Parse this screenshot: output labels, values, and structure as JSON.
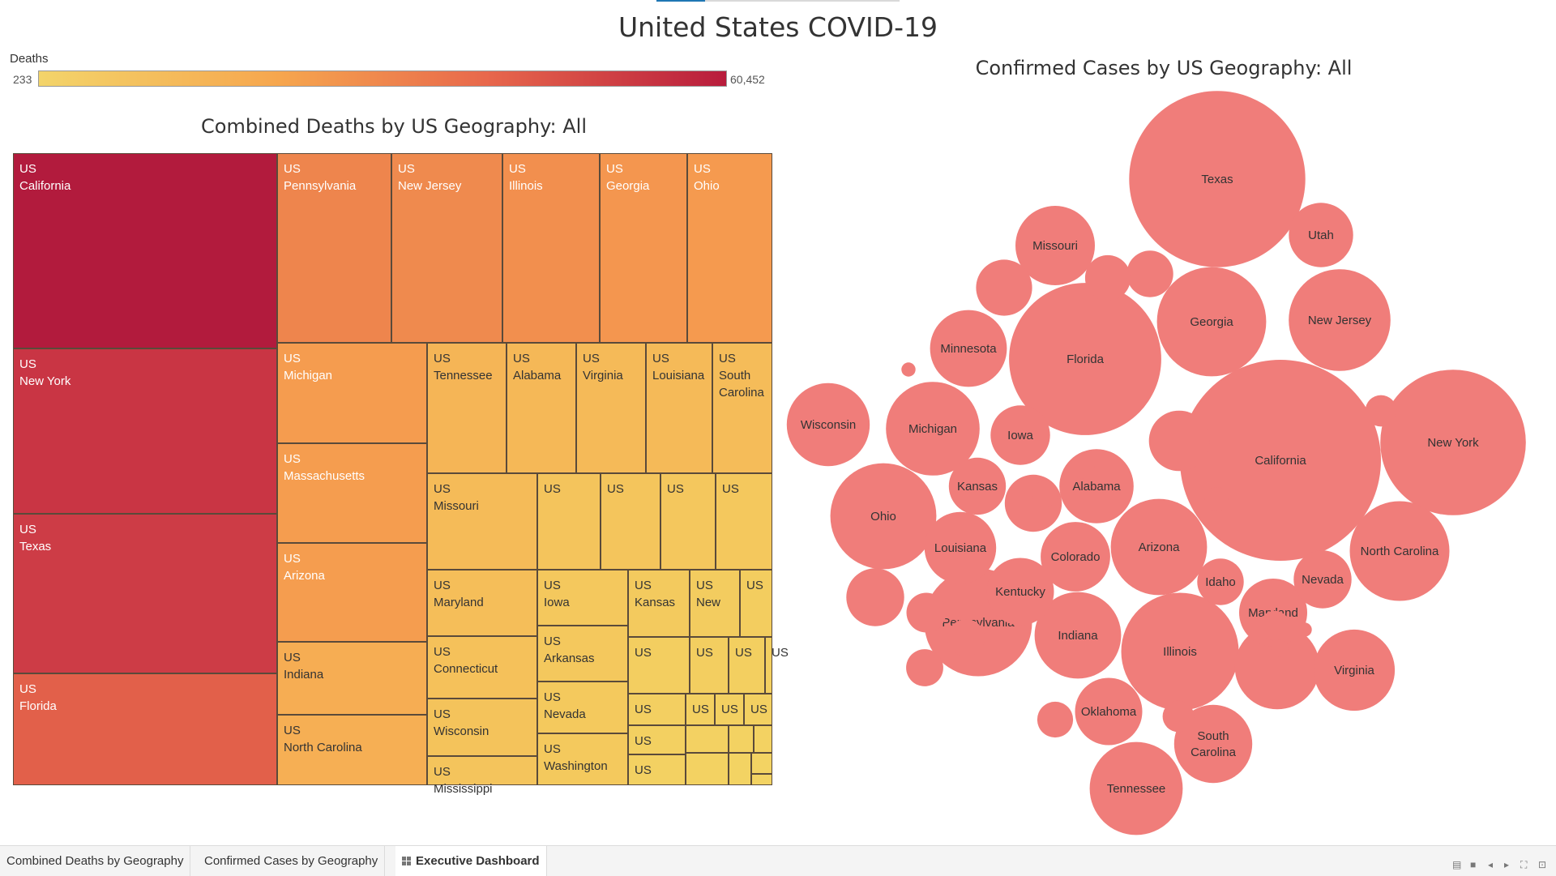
{
  "dashboard_title": "United States COVID-19",
  "legend": {
    "title": "Deaths",
    "min_label": "233",
    "max_label": "60,452",
    "colors": [
      "#f3d46a",
      "#f6a64e",
      "#e8684c",
      "#b81c3c"
    ]
  },
  "chart_data": [
    {
      "type": "treemap",
      "title": "Combined Deaths by US Geography: All",
      "measure": "Deaths",
      "color_range": [
        233,
        60452
      ],
      "tiles": [
        {
          "country": "US",
          "state": "California",
          "label": "US\nCalifornia",
          "value": 60452,
          "color": "#b21b3d"
        },
        {
          "country": "US",
          "state": "New York",
          "label": "US\nNew York",
          "value": 50000,
          "color": "#c93544"
        },
        {
          "country": "US",
          "state": "Texas",
          "label": "US\nTexas",
          "value": 49000,
          "color": "#cd3c46"
        },
        {
          "country": "US",
          "state": "Florida",
          "label": "US\nFlorida",
          "value": 34000,
          "color": "#e2604a"
        },
        {
          "country": "US",
          "state": "Pennsylvania",
          "label": "US\nPennsylvania",
          "value": 26000,
          "color": "#ee854d"
        },
        {
          "country": "US",
          "state": "New Jersey",
          "label": "US\nNew Jersey",
          "value": 25000,
          "color": "#ef8a4e"
        },
        {
          "country": "US",
          "state": "Illinois",
          "label": "US\nIllinois",
          "value": 22500,
          "color": "#f28f4e"
        },
        {
          "country": "US",
          "state": "Georgia",
          "label": "US\nGeorgia",
          "value": 20000,
          "color": "#f4964f"
        },
        {
          "country": "US",
          "state": "Ohio",
          "label": "US\nOhio",
          "value": 19000,
          "color": "#f59a4f"
        },
        {
          "country": "US",
          "state": "Michigan",
          "label": "US\nMichigan",
          "value": 17500,
          "color": "#f59c4f"
        },
        {
          "country": "US",
          "state": "Massachusetts",
          "label": "US\nMassachusetts",
          "value": 17500,
          "color": "#f59d4f"
        },
        {
          "country": "US",
          "state": "Arizona",
          "label": "US\nArizona",
          "value": 17200,
          "color": "#f59d4f"
        },
        {
          "country": "US",
          "state": "Indiana",
          "label": "US\nIndiana",
          "value": 12500,
          "color": "#f6ad53"
        },
        {
          "country": "US",
          "state": "North Carolina",
          "label": "US\nNorth Carolina",
          "value": 12000,
          "color": "#f6af54"
        },
        {
          "country": "US",
          "state": "Tennessee",
          "label": "US\nTennessee",
          "value": 11000,
          "color": "#f5b556"
        },
        {
          "country": "US",
          "state": "Alabama",
          "label": "US\nAlabama",
          "value": 10000,
          "color": "#f5b857"
        },
        {
          "country": "US",
          "state": "Virginia",
          "label": "US\nVirginia",
          "value": 9500,
          "color": "#f5ba58"
        },
        {
          "country": "US",
          "state": "Louisiana",
          "label": "US\nLouisiana",
          "value": 9400,
          "color": "#f5ba58"
        },
        {
          "country": "US",
          "state": "South Carolina",
          "label": "US\nSouth\nCarolina",
          "value": 8900,
          "color": "#f5bc59"
        },
        {
          "country": "US",
          "state": "Missouri",
          "label": "US\nMissouri",
          "value": 9200,
          "color": "#f5bb58"
        },
        {
          "country": "US",
          "state": "",
          "label": "US",
          "value": 7000,
          "color": "#f4c45c"
        },
        {
          "country": "US",
          "state": "",
          "label": "US",
          "value": 6500,
          "color": "#f4c55c"
        },
        {
          "country": "US",
          "state": "",
          "label": "US",
          "value": 6000,
          "color": "#f4c75d"
        },
        {
          "country": "US",
          "state": "",
          "label": "US",
          "value": 5500,
          "color": "#f4c85d"
        },
        {
          "country": "US",
          "state": "Maryland",
          "label": "US\nMaryland",
          "value": 8500,
          "color": "#f5be59"
        },
        {
          "country": "US",
          "state": "Connecticut",
          "label": "US\nConnecticut",
          "value": 7500,
          "color": "#f5c15a"
        },
        {
          "country": "US",
          "state": "Wisconsin",
          "label": "US\nWisconsin",
          "value": 7000,
          "color": "#f4c35b"
        },
        {
          "country": "US",
          "state": "Mississippi",
          "label": "US\nMississippi",
          "value": 6500,
          "color": "#f4c45c"
        },
        {
          "country": "US",
          "state": "Iowa",
          "label": "US\nIowa",
          "value": 5600,
          "color": "#f4c85d"
        },
        {
          "country": "US",
          "state": "Kansas",
          "label": "US\nKansas",
          "value": 4700,
          "color": "#f3ca5e"
        },
        {
          "country": "US",
          "state": "New",
          "label": "US\nNew",
          "value": 3500,
          "color": "#f3cc5f"
        },
        {
          "country": "US",
          "state": "",
          "label": "US",
          "value": 2400,
          "color": "#f3cd5f"
        },
        {
          "country": "US",
          "state": "Arkansas",
          "label": "US\nArkansas",
          "value": 5600,
          "color": "#f4c85d"
        },
        {
          "country": "US",
          "state": "Nevada",
          "label": "US\nNevada",
          "value": 5400,
          "color": "#f4c95d"
        },
        {
          "country": "US",
          "state": "Washington",
          "label": "US\nWashington",
          "value": 5300,
          "color": "#f4c95d"
        },
        {
          "country": "US",
          "state": "",
          "label": "US",
          "value": 2900,
          "color": "#f3ce60"
        },
        {
          "country": "US",
          "state": "",
          "label": "US",
          "value": 2700,
          "color": "#f3ce60"
        },
        {
          "country": "US",
          "state": "",
          "label": "US",
          "value": 2600,
          "color": "#f3cf60"
        },
        {
          "country": "US",
          "state": "",
          "label": "US",
          "value": 2400,
          "color": "#f3cf60"
        },
        {
          "country": "US",
          "state": "",
          "label": "US",
          "value": 2500,
          "color": "#f3cf61"
        },
        {
          "country": "US",
          "state": "",
          "label": "US",
          "value": 1600,
          "color": "#f3d061"
        },
        {
          "country": "US",
          "state": "",
          "label": "US",
          "value": 1600,
          "color": "#f3d061"
        },
        {
          "country": "US",
          "state": "",
          "label": "US",
          "value": 1600,
          "color": "#f3d061"
        },
        {
          "country": "US",
          "state": "",
          "label": "US",
          "value": 2300,
          "color": "#f3d061"
        },
        {
          "country": "US",
          "state": "",
          "label": "US",
          "value": 2100,
          "color": "#f3d162"
        },
        {
          "country": "US",
          "state": "",
          "label": "",
          "value": 1300,
          "color": "#f3d162"
        },
        {
          "country": "US",
          "state": "",
          "label": "",
          "value": 900,
          "color": "#f3d262"
        },
        {
          "country": "US",
          "state": "",
          "label": "",
          "value": 800,
          "color": "#f3d262"
        },
        {
          "country": "US",
          "state": "",
          "label": "",
          "value": 700,
          "color": "#f3d262"
        },
        {
          "country": "US",
          "state": "",
          "label": "",
          "value": 500,
          "color": "#f3d363"
        },
        {
          "country": "US",
          "state": "",
          "label": "",
          "value": 300,
          "color": "#f3d363"
        },
        {
          "country": "US",
          "state": "",
          "label": "",
          "value": 233,
          "color": "#f3d363"
        }
      ]
    },
    {
      "type": "bubble",
      "title": "Confirmed Cases by US Geography: All",
      "measure": "Confirmed Cases",
      "color": "#f07d7a",
      "bubbles": [
        {
          "label": "California",
          "value": 41000
        },
        {
          "label": "Texas",
          "value": 31500
        },
        {
          "label": "Florida",
          "value": 23500
        },
        {
          "label": "New York",
          "value": 21500
        },
        {
          "label": "Illinois",
          "value": 14000
        },
        {
          "label": "Georgia",
          "value": 12100
        },
        {
          "label": "Pennsylvania",
          "value": 11800
        },
        {
          "label": "Ohio",
          "value": 11400
        },
        {
          "label": "Arizona",
          "value": 9400
        },
        {
          "label": "North Carolina",
          "value": 10100
        },
        {
          "label": "Michigan",
          "value": 8900
        },
        {
          "label": "New Jersey",
          "value": 10500
        },
        {
          "label": "Tennessee",
          "value": 8800
        },
        {
          "label": "Indiana",
          "value": 7600
        },
        {
          "label": "",
          "value": 7300
        },
        {
          "label": "Missouri",
          "value": 6400
        },
        {
          "label": "Wisconsin",
          "value": 7000
        },
        {
          "label": "Virginia",
          "value": 6700
        },
        {
          "label": "Minnesota",
          "value": 6000
        },
        {
          "label": "Alabama",
          "value": 5600
        },
        {
          "label": "South Carolina",
          "value": 6200
        },
        {
          "label": "Louisiana",
          "value": 5200
        },
        {
          "label": "Kentucky",
          "value": 4600
        },
        {
          "label": "Colorado",
          "value": 4900
        },
        {
          "label": "Maryland",
          "value": 4700
        },
        {
          "label": "Oklahoma",
          "value": 4600
        },
        {
          "label": "Utah",
          "value": 4200
        },
        {
          "label": "Iowa",
          "value": 3600
        },
        {
          "label": "",
          "value": 3700
        },
        {
          "label": "Nevada",
          "value": 3400
        },
        {
          "label": "Kansas",
          "value": 3300
        },
        {
          "label": "",
          "value": 3300
        },
        {
          "label": "",
          "value": 3400
        },
        {
          "label": "",
          "value": 3200
        },
        {
          "label": "Idaho",
          "value": 2200
        },
        {
          "label": "",
          "value": 2200
        },
        {
          "label": "",
          "value": 2100
        },
        {
          "label": "",
          "value": 1600
        },
        {
          "label": "",
          "value": 1400
        },
        {
          "label": "",
          "value": 1400
        },
        {
          "label": "",
          "value": 1300
        },
        {
          "label": "",
          "value": 1000
        },
        {
          "label": "",
          "value": 1000
        },
        {
          "label": "",
          "value": 900
        },
        {
          "label": "",
          "value": 700
        },
        {
          "label": "",
          "value": 600
        },
        {
          "label": "",
          "value": 600
        },
        {
          "label": "",
          "value": 300
        },
        {
          "label": "",
          "value": 200
        },
        {
          "label": "",
          "value": 200
        }
      ]
    }
  ],
  "tabs": [
    {
      "label": "Combined Deaths by Geography",
      "active": false
    },
    {
      "label": "Confirmed Cases by Geography",
      "active": false
    },
    {
      "label": "Executive Dashboard",
      "active": true
    }
  ],
  "controls": {
    "prev": "◂",
    "next": "▸",
    "fullscreen": "⛶"
  }
}
